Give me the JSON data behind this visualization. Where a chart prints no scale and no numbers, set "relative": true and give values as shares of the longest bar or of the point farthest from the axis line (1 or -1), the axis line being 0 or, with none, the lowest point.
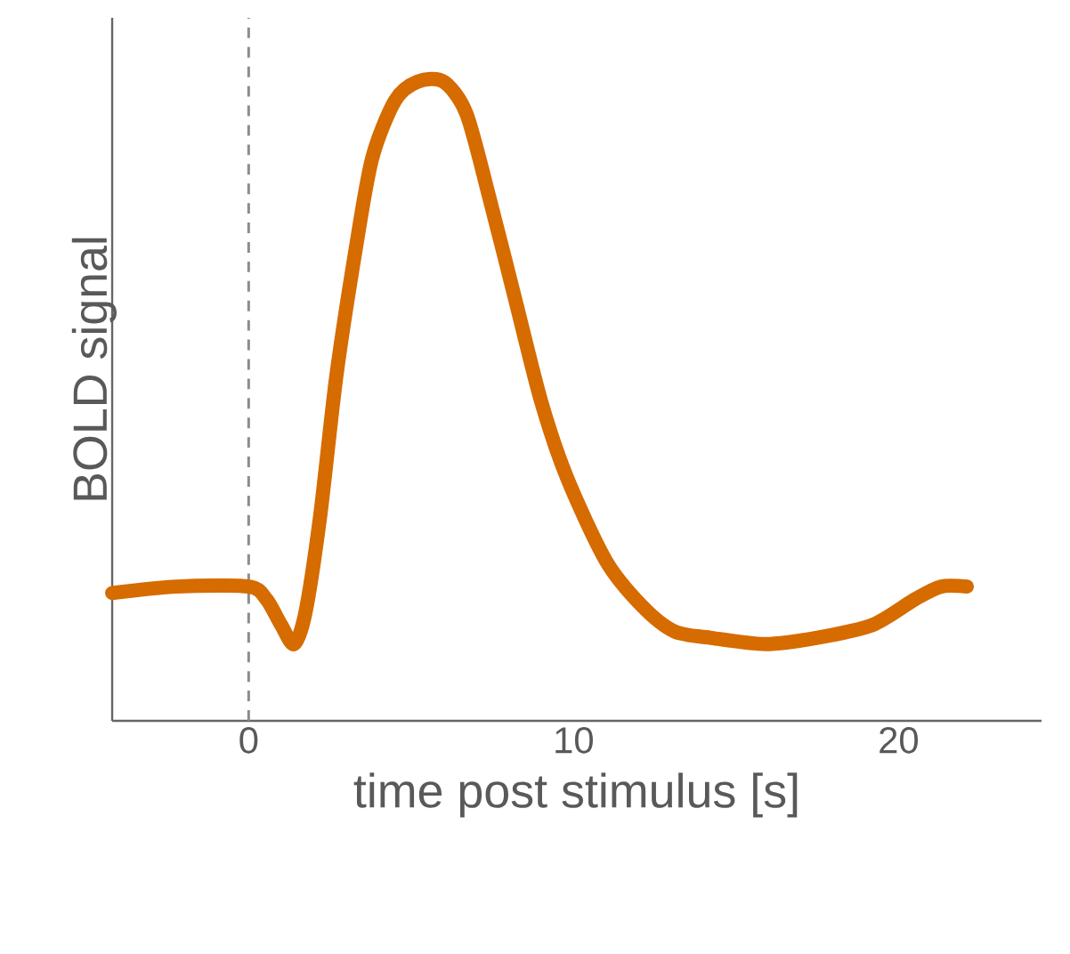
{
  "chart_data": {
    "type": "line",
    "xlabel": "time post stimulus [s]",
    "ylabel": "BOLD signal",
    "relative": true,
    "xlim": [
      -4.2,
      24.4
    ],
    "xticks": [
      0,
      10,
      20
    ],
    "line_style": "solid",
    "ref_lines": [
      {
        "axis": "x",
        "value": 0,
        "color": "#8c8c8c",
        "line_style": "dashed"
      }
    ],
    "series": [
      {
        "color": "#d66b00",
        "x": [
          -4.2,
          -2.2,
          0,
          0.55,
          1.0,
          1.4,
          1.75,
          2.2,
          2.7,
          3.3,
          3.8,
          4.5,
          5.2,
          6.0,
          6.7,
          7.4,
          8.2,
          9.0,
          9.8,
          11.0,
          12.1,
          13.1,
          14.2,
          15.9,
          17.5,
          19.2,
          20.5,
          21.3,
          22.1
        ],
        "values": [
          0.2,
          0.21,
          0.21,
          0.19,
          0.15,
          0.12,
          0.17,
          0.32,
          0.54,
          0.74,
          0.88,
          0.97,
          1.0,
          1.0,
          0.95,
          0.82,
          0.66,
          0.5,
          0.38,
          0.25,
          0.18,
          0.14,
          0.13,
          0.12,
          0.13,
          0.15,
          0.19,
          0.21,
          0.21
        ]
      }
    ]
  }
}
